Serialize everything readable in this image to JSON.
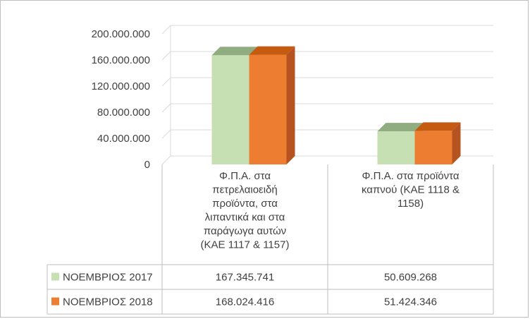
{
  "chart_data": {
    "type": "bar",
    "categories": [
      "Φ.Π.Α. στα πετρελαιοειδή προϊόντα, στα λιπαντικά και στα παράγωγα αυτών (ΚΑΕ 1117 & 1157)",
      "Φ.Π.Α. στα προϊόντα καπνού (ΚΑΕ 1118 & 1158)"
    ],
    "category_lines": [
      [
        "Φ.Π.Α. στα",
        "πετρελαιοειδή",
        "προϊόντα, στα",
        "λιπαντικά και στα",
        "παράγωγα αυτών",
        "(ΚΑΕ 1117 & 1157)"
      ],
      [
        "Φ.Π.Α. στα προϊόντα",
        "καπνού (ΚΑΕ 1118 &",
        "1158)"
      ]
    ],
    "series": [
      {
        "name": "ΝΟΕΜΒΡΙΟΣ 2017",
        "values": [
          167345741,
          50609268
        ],
        "labels": [
          "167.345.741",
          "50.609.268"
        ],
        "color": "#c6e0b4",
        "top_color": "#8fad80",
        "side_color": "#a9c39a"
      },
      {
        "name": "ΝΟΕΜΒΡΙΟΣ 2018",
        "values": [
          168024416,
          51424346
        ],
        "labels": [
          "168.024.416",
          "51.424.346"
        ],
        "color": "#ed7d31",
        "top_color": "#c55a11",
        "side_color": "#b55421"
      }
    ],
    "y_ticks": [
      0,
      40000000,
      80000000,
      120000000,
      160000000,
      200000000
    ],
    "y_tick_labels": [
      "0",
      "40.000.000",
      "80.000.000",
      "120.000.000",
      "160.000.000",
      "200.000.000"
    ],
    "ylim": [
      0,
      200000000
    ],
    "grid": true,
    "legend": "data-table",
    "style": "3d-column"
  }
}
